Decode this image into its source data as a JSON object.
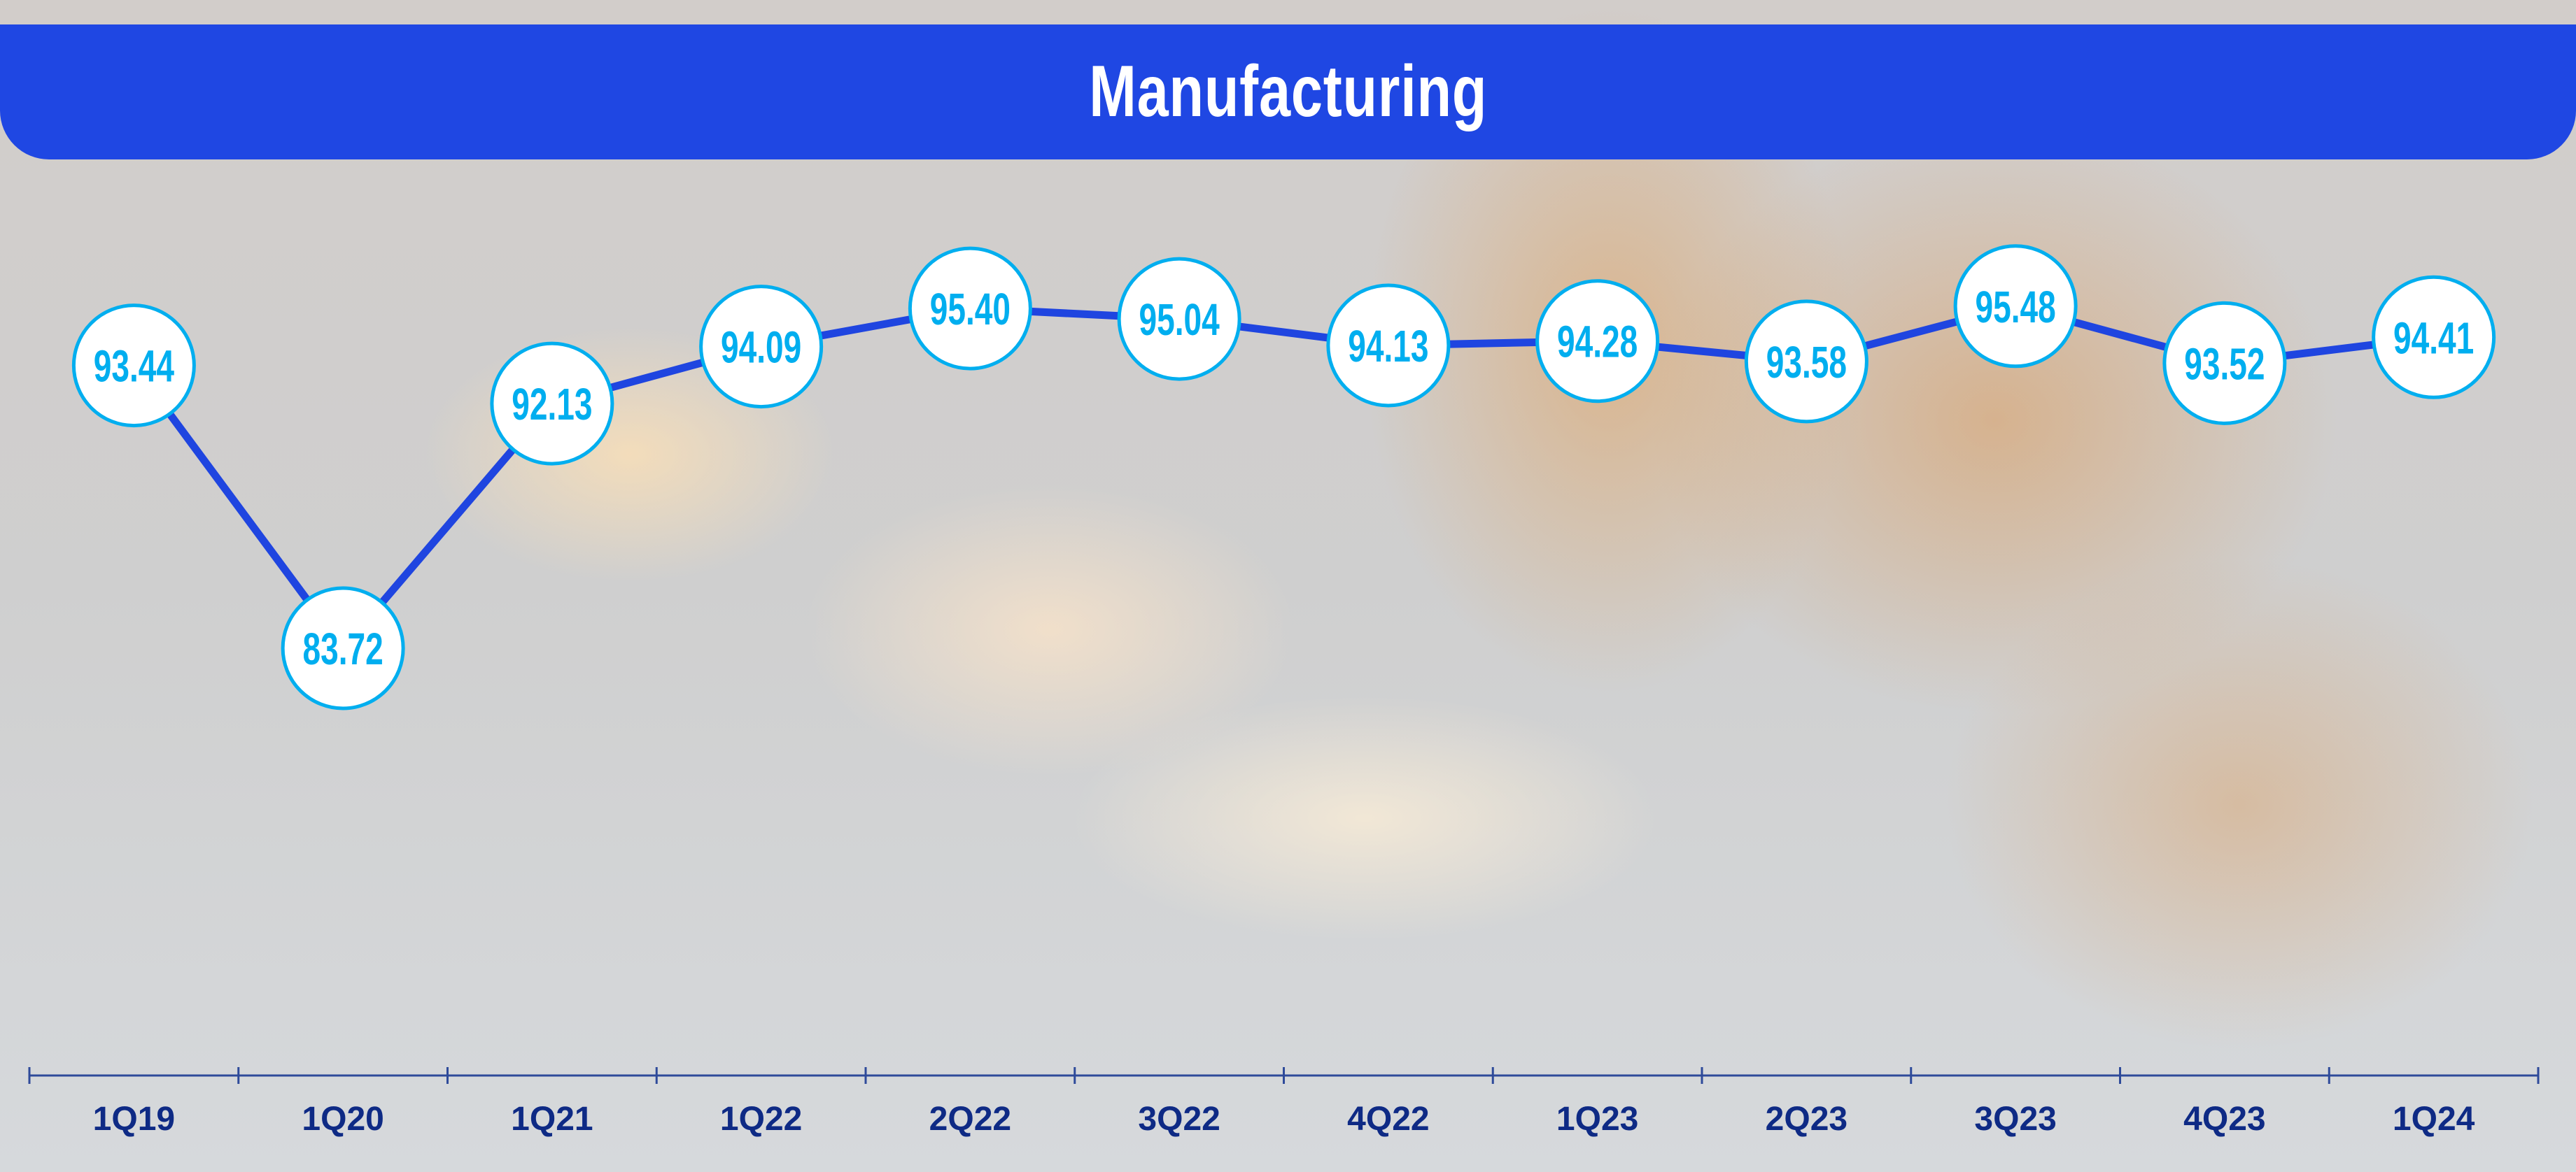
{
  "header": {
    "title": "Manufacturing"
  },
  "colors": {
    "banner": "#1F47E3",
    "line": "#1F45E0",
    "marker_border": "#00AEEF",
    "label_text": "#00AEEF",
    "axis_text": "#0E2A85"
  },
  "chart_data": {
    "type": "line",
    "title": "Manufacturing",
    "categories": [
      "1Q19",
      "1Q20",
      "1Q21",
      "1Q22",
      "2Q22",
      "3Q22",
      "4Q22",
      "1Q23",
      "2Q23",
      "3Q23",
      "4Q23",
      "1Q24"
    ],
    "series": [
      {
        "values": [
          93.44,
          83.72,
          92.13,
          94.09,
          95.4,
          95.04,
          94.13,
          94.28,
          93.58,
          95.48,
          93.52,
          94.41
        ]
      }
    ],
    "data_labels": [
      "93.44",
      "83.72",
      "92.13",
      "94.09",
      "95.40",
      "95.04",
      "94.13",
      "94.28",
      "93.58",
      "95.48",
      "93.52",
      "94.41"
    ],
    "xlabel": "",
    "ylabel": "",
    "grid": false,
    "y_axis_visible": false,
    "legend": "none"
  }
}
